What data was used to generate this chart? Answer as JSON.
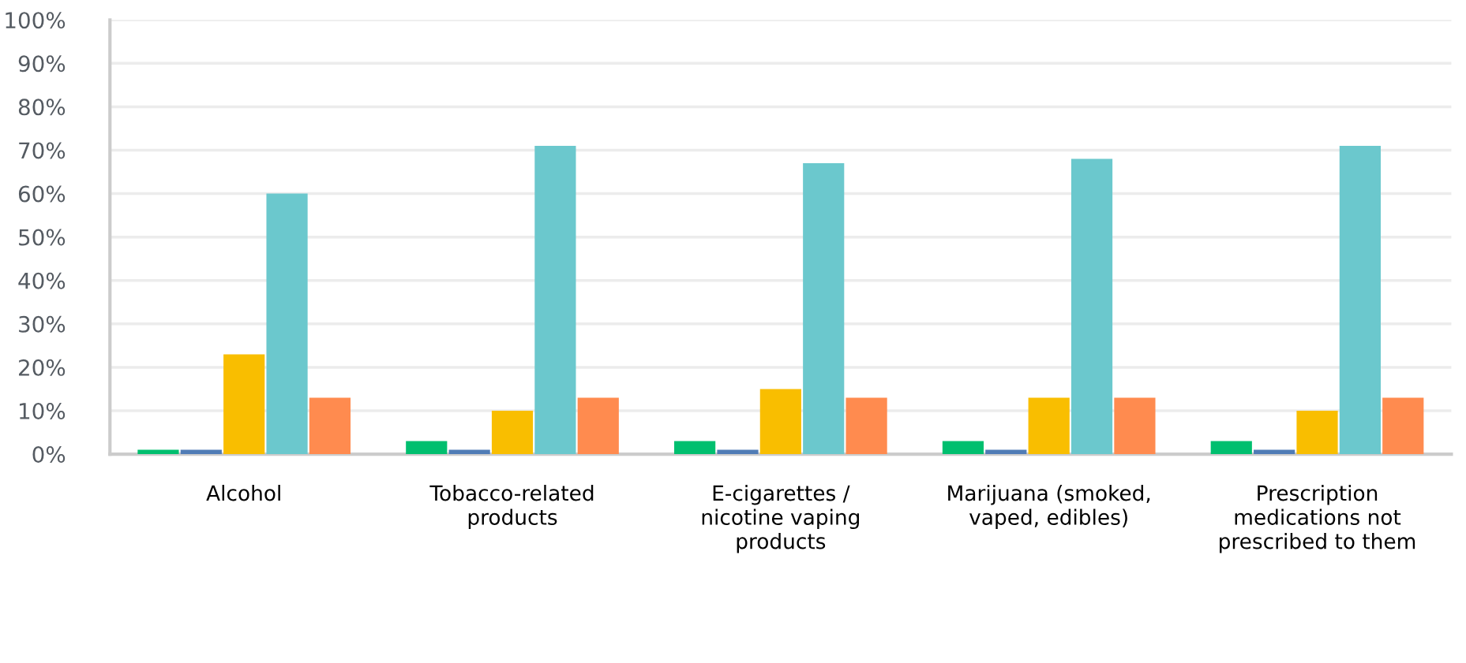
{
  "chart_data": {
    "type": "bar",
    "categories": [
      "Alcohol",
      "Tobacco-related\nproducts",
      "E-cigarettes /\nnicotine vaping\nproducts",
      "Marijuana (smoked,\nvaped, edibles)",
      "Prescription\nmedications not\nprescribed to them"
    ],
    "series": [
      {
        "color": "#00bf6f",
        "values": [
          1,
          3,
          3,
          3,
          3
        ]
      },
      {
        "color": "#507cb6",
        "values": [
          1,
          1,
          1,
          1,
          1
        ]
      },
      {
        "color": "#f9be00",
        "values": [
          23,
          10,
          15,
          13,
          10
        ]
      },
      {
        "color": "#6bc8cd",
        "values": [
          60,
          71,
          67,
          68,
          71
        ]
      },
      {
        "color": "#ff8b4f",
        "values": [
          13,
          13,
          13,
          13,
          13
        ]
      }
    ],
    "ylim": [
      0,
      100
    ],
    "yticks": [
      {
        "value": 0,
        "label": "0%"
      },
      {
        "value": 10,
        "label": "10%"
      },
      {
        "value": 20,
        "label": "20%"
      },
      {
        "value": 30,
        "label": "30%"
      },
      {
        "value": 40,
        "label": "40%"
      },
      {
        "value": 50,
        "label": "50%"
      },
      {
        "value": 60,
        "label": "60%"
      },
      {
        "value": 70,
        "label": "70%"
      },
      {
        "value": 80,
        "label": "80%"
      },
      {
        "value": 90,
        "label": "90%"
      },
      {
        "value": 100,
        "label": "100%"
      }
    ],
    "grid": "y"
  }
}
